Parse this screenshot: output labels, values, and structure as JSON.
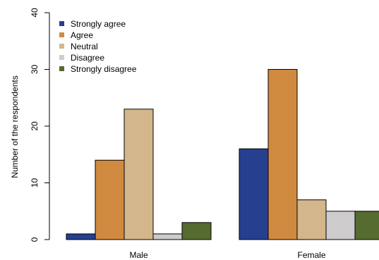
{
  "chart_data": {
    "type": "bar",
    "categories": [
      "Male",
      "Female"
    ],
    "series": [
      {
        "name": "Strongly agree",
        "color": "#273f8f",
        "values": [
          1,
          16
        ]
      },
      {
        "name": "Agree",
        "color": "#d08a3f",
        "values": [
          14,
          30
        ]
      },
      {
        "name": "Neutral",
        "color": "#d4b68c",
        "values": [
          23,
          7
        ]
      },
      {
        "name": "Disagree",
        "color": "#cdcbcb",
        "values": [
          1,
          5
        ]
      },
      {
        "name": "Strongly disagree",
        "color": "#556b2f",
        "values": [
          3,
          5
        ]
      }
    ],
    "title": "",
    "xlabel": "",
    "ylabel": "Number of the respondents",
    "ylim": [
      0,
      40
    ],
    "yticks": [
      0,
      10,
      20,
      30,
      40
    ],
    "grid": false,
    "legend_position": "top-left"
  }
}
